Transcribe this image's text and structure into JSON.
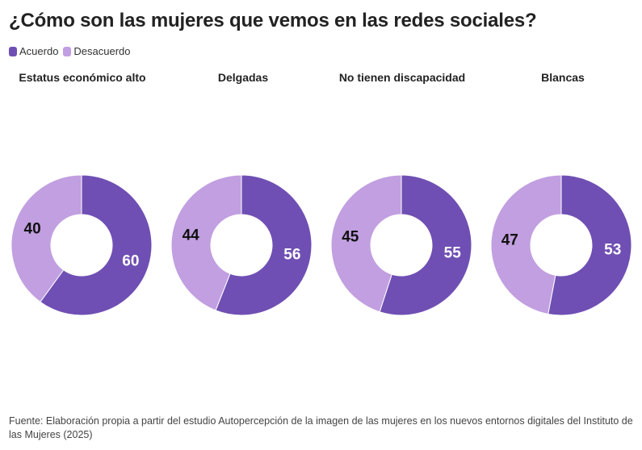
{
  "title": "¿Cómo son las mujeres que vemos en las redes sociales?",
  "legend": [
    {
      "label": "Acuerdo",
      "color": "#6f4fb3"
    },
    {
      "label": "Desacuerdo",
      "color": "#c19fe0"
    }
  ],
  "chart_data": [
    {
      "type": "pie",
      "title": "Estatus económico alto",
      "categories": [
        "Acuerdo",
        "Desacuerdo"
      ],
      "values": [
        60,
        40
      ]
    },
    {
      "type": "pie",
      "title": "Delgadas",
      "categories": [
        "Acuerdo",
        "Desacuerdo"
      ],
      "values": [
        56,
        44
      ]
    },
    {
      "type": "pie",
      "title": "No tienen discapacidad",
      "categories": [
        "Acuerdo",
        "Desacuerdo"
      ],
      "values": [
        55,
        45
      ]
    },
    {
      "type": "pie",
      "title": "Blancas",
      "categories": [
        "Acuerdo",
        "Desacuerdo"
      ],
      "values": [
        53,
        47
      ]
    }
  ],
  "label_colors": {
    "Acuerdo": "#ffffff",
    "Desacuerdo": "#111111"
  },
  "footer": "Fuente: Elaboración propia a partir del estudio Autopercepción de la imagen de las mujeres en los nuevos entornos digitales del Instituto de las Mujeres (2025)"
}
